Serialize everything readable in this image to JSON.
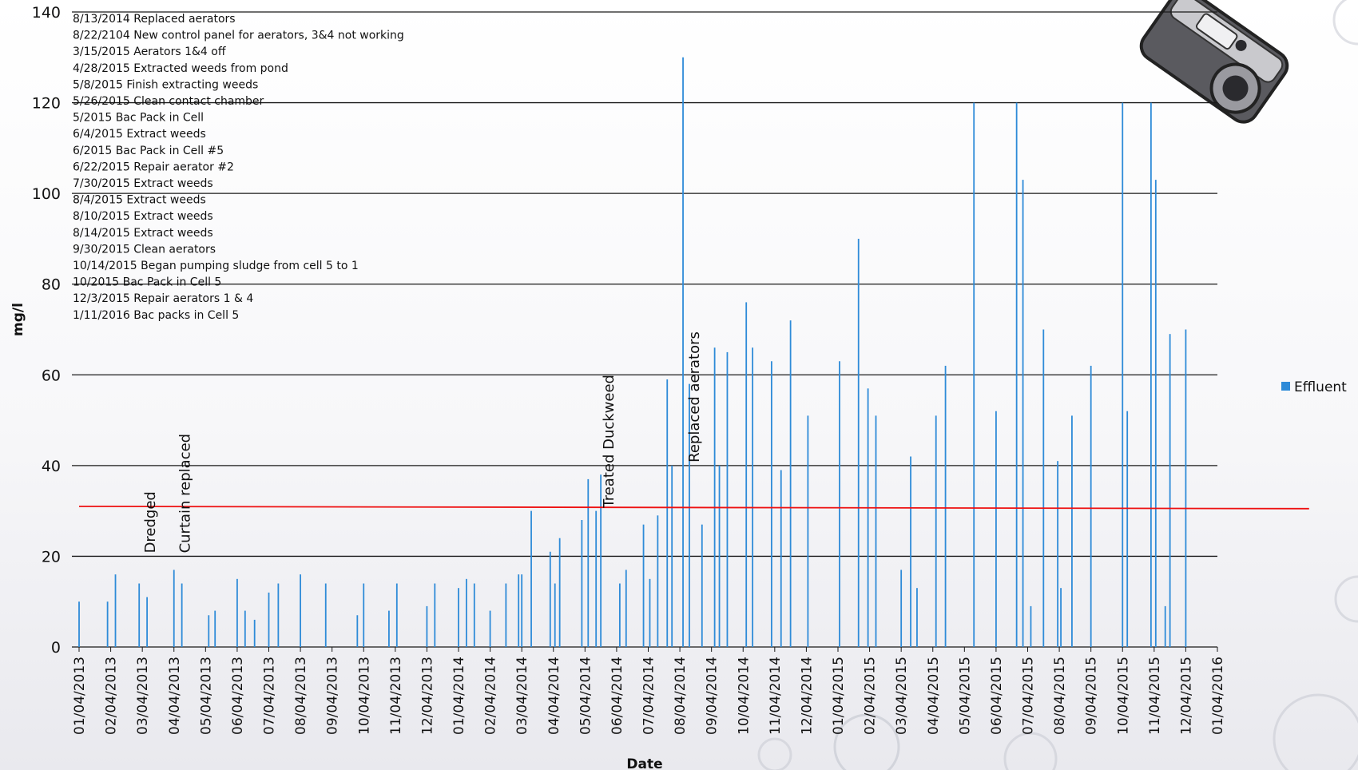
{
  "chart_data": {
    "type": "bar",
    "xlabel": "Date",
    "ylabel": "mg/l",
    "ylim": [
      0,
      140
    ],
    "yticks": [
      0,
      20,
      40,
      60,
      80,
      100,
      120,
      140
    ],
    "grid": true,
    "legend_position": "right",
    "x_tick_labels": [
      "01/04/2013",
      "02/04/2013",
      "03/04/2013",
      "04/04/2013",
      "05/04/2013",
      "06/04/2013",
      "07/04/2013",
      "08/04/2013",
      "09/04/2013",
      "10/04/2013",
      "11/04/2013",
      "12/04/2013",
      "01/04/2014",
      "02/04/2014",
      "03/04/2014",
      "04/04/2014",
      "05/04/2014",
      "06/04/2014",
      "07/04/2014",
      "08/04/2014",
      "09/04/2014",
      "10/04/2014",
      "11/04/2014",
      "12/04/2014",
      "01/04/2015",
      "02/04/2015",
      "03/04/2015",
      "04/04/2015",
      "05/04/2015",
      "06/04/2015",
      "07/04/2015",
      "08/04/2015",
      "09/04/2015",
      "10/04/2015",
      "11/04/2015",
      "12/04/2015",
      "01/04/2016"
    ],
    "series": [
      {
        "name": "Effluent",
        "color": "#2e8bd8",
        "x": [
          0.0,
          0.9,
          1.15,
          1.9,
          2.15,
          3.0,
          3.25,
          4.1,
          4.3,
          5.0,
          5.25,
          5.55,
          6.0,
          6.3,
          7.0,
          7.8,
          8.8,
          9.0,
          9.8,
          10.05,
          11.0,
          11.25,
          12.0,
          12.25,
          12.5,
          13.0,
          13.5,
          13.9,
          14.0,
          14.3,
          14.9,
          15.05,
          15.2,
          15.9,
          16.1,
          16.35,
          16.5,
          17.1,
          17.3,
          17.85,
          18.05,
          18.3,
          18.6,
          18.75,
          19.1,
          19.3,
          19.7,
          20.1,
          20.25,
          20.5,
          21.1,
          21.3,
          21.9,
          22.2,
          22.5,
          23.05,
          24.05,
          24.65,
          24.95,
          25.2,
          26.0,
          26.3,
          26.5,
          27.1,
          27.4,
          28.3,
          29.0,
          29.65,
          29.85,
          30.1,
          30.5,
          30.95,
          31.05,
          31.4,
          32.0,
          33.0,
          33.15,
          33.9,
          34.05,
          34.35,
          34.5,
          35.0
        ],
        "values": [
          10,
          10,
          16,
          14,
          11,
          17,
          14,
          7,
          8,
          15,
          8,
          6,
          12,
          14,
          16,
          14,
          7,
          14,
          8,
          14,
          9,
          14,
          13,
          15,
          14,
          8,
          14,
          16,
          16,
          30,
          21,
          14,
          24,
          28,
          37,
          30,
          38,
          14,
          17,
          27,
          15,
          29,
          59,
          40,
          130,
          58,
          27,
          66,
          40,
          65,
          76,
          66,
          63,
          39,
          72,
          51,
          63,
          90,
          57,
          51,
          17,
          42,
          13,
          51,
          62,
          120,
          52,
          120,
          103,
          9,
          70,
          41,
          13,
          51,
          62,
          120,
          52,
          120,
          103,
          9,
          69,
          70
        ],
        "note": ""
      },
      {
        "name": "",
        "color": "#ee1111",
        "type": "line",
        "x": [
          0,
          38.9
        ],
        "values": [
          31,
          30.5
        ]
      }
    ],
    "annotations_list": [
      "8/13/2014 Replaced aerators",
      "8/22/2104 New control panel for aerators, 3&4 not working",
      "3/15/2015 Aerators 1&4 off",
      "4/28/2015 Extracted weeds from pond",
      "5/8/2015 Finish extracting weeds",
      "5/26/2015 Clean contact chamber",
      "5/2015 Bac Pack in Cell",
      "6/4/2015  Extract weeds",
      "6/2015 Bac Pack in Cell #5",
      "6/22/2015 Repair aerator #2",
      "7/30/2015 Extract weeds",
      "8/4/2015 Extract weeds",
      "8/10/2015 Extract weeds",
      "8/14/2015 Extract weeds",
      "9/30/2015 Clean aerators",
      "10/14/2015 Began pumping sludge from cell 5 to 1",
      "10/2015 Bac Pack in Cell 5",
      "12/3/2015 Repair aerators 1 & 4",
      "1/11/2016 Bac packs in Cell 5"
    ],
    "event_labels": [
      {
        "text": "Dredged",
        "x": 2.4,
        "y": 20
      },
      {
        "text": "Curtain replaced",
        "x": 3.5,
        "y": 20
      },
      {
        "text": "Treated Duckweed",
        "x": 16.9,
        "y": 30
      },
      {
        "text": "Replaced aerators",
        "x": 19.6,
        "y": 40
      }
    ]
  },
  "icons": {
    "camera": "camera-icon",
    "water_droplets": "water-droplet-icon"
  }
}
